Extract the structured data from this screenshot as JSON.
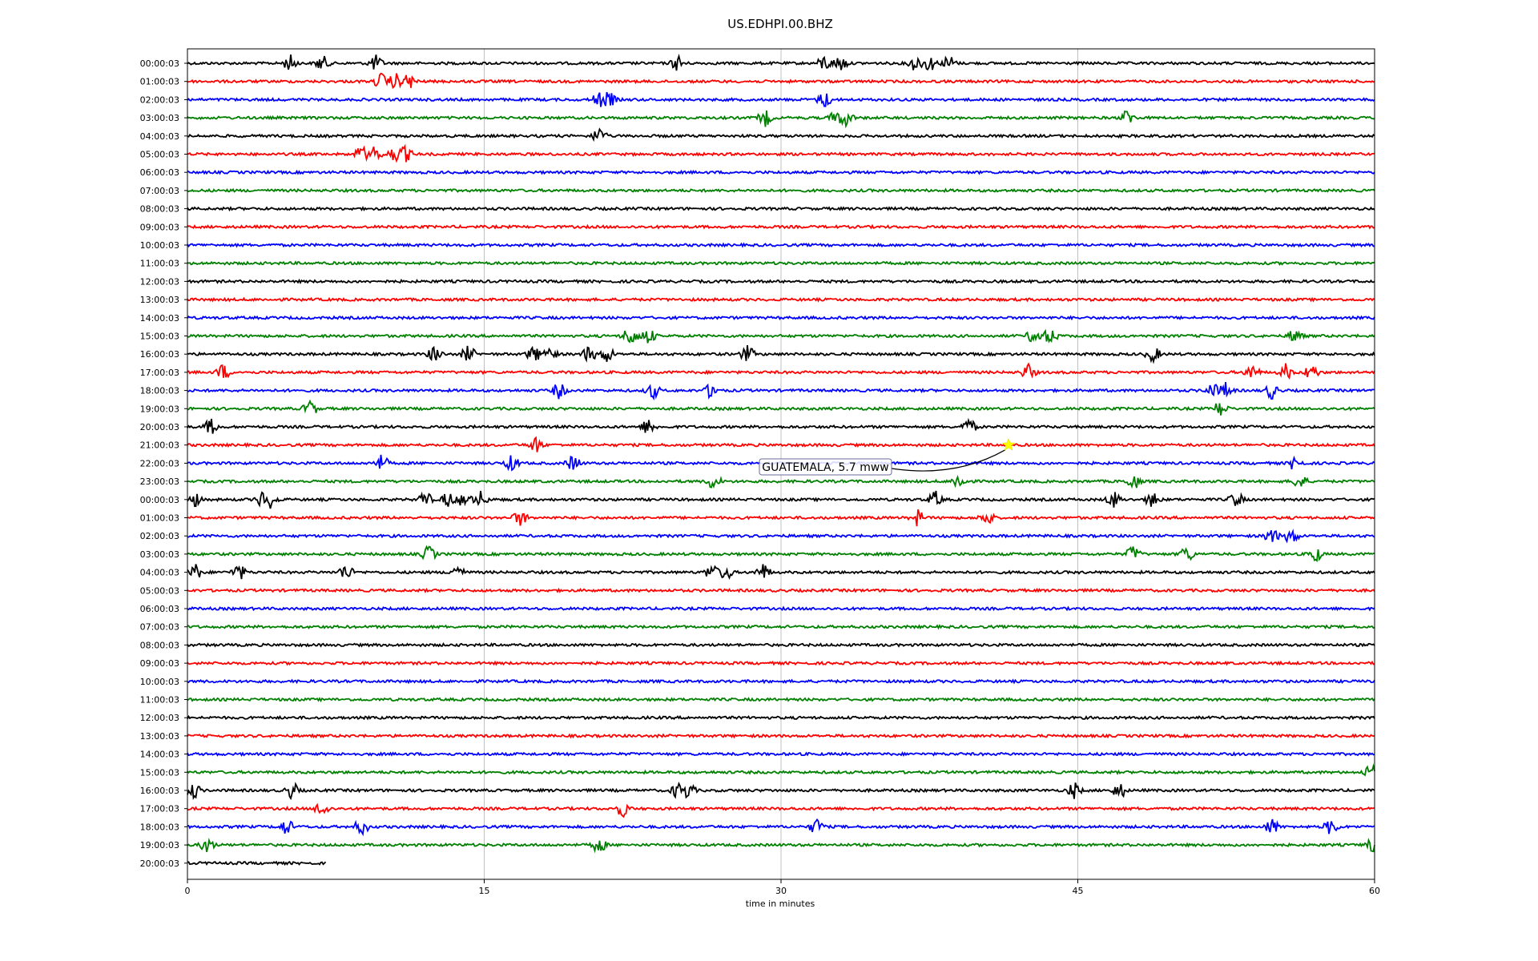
{
  "chart_data": {
    "type": "line",
    "title": "US.EDHPI.00.BHZ",
    "xlabel": "time in minutes",
    "xlim": [
      0,
      60
    ],
    "xticks": [
      0,
      15,
      30,
      45,
      60
    ],
    "grid": "vertical",
    "row_labels": [
      "00:00:03",
      "01:00:03",
      "02:00:03",
      "03:00:03",
      "04:00:03",
      "05:00:03",
      "06:00:03",
      "07:00:03",
      "08:00:03",
      "09:00:03",
      "10:00:03",
      "11:00:03",
      "12:00:03",
      "13:00:03",
      "14:00:03",
      "15:00:03",
      "16:00:03",
      "17:00:03",
      "18:00:03",
      "19:00:03",
      "20:00:03",
      "21:00:03",
      "22:00:03",
      "23:00:03",
      "00:00:03",
      "01:00:03",
      "02:00:03",
      "03:00:03",
      "04:00:03",
      "05:00:03",
      "06:00:03",
      "07:00:03",
      "08:00:03",
      "09:00:03",
      "10:00:03",
      "11:00:03",
      "12:00:03",
      "13:00:03",
      "14:00:03",
      "15:00:03",
      "16:00:03",
      "17:00:03",
      "18:00:03",
      "19:00:03",
      "20:00:03"
    ],
    "trace_colors": [
      "#000000",
      "#ff0000",
      "#0000ff",
      "#008000"
    ],
    "last_row_end_minute": 7,
    "events": [
      {
        "row": 0,
        "minutes": [
          5.2,
          6.8,
          9.5,
          24.8,
          32.2,
          33,
          36.8,
          37.5,
          38.5
        ]
      },
      {
        "row": 1,
        "minutes": [
          9.8,
          10.5,
          11.2
        ]
      },
      {
        "row": 2,
        "minutes": [
          20.8,
          21.3,
          32.2
        ]
      },
      {
        "row": 3,
        "minutes": [
          29.2,
          32.8,
          33.3,
          47.5
        ]
      },
      {
        "row": 4,
        "minutes": [
          20.8
        ]
      },
      {
        "row": 5,
        "minutes": [
          8.8,
          9.5,
          10.5,
          11
        ]
      },
      {
        "row": 15,
        "minutes": [
          22.3,
          22.5,
          23.3,
          42.8,
          43.6,
          56
        ]
      },
      {
        "row": 16,
        "minutes": [
          12.5,
          14.2,
          17.5,
          18.3,
          20.3,
          21.2,
          28.3,
          48.8
        ]
      },
      {
        "row": 17,
        "minutes": [
          1.8,
          42.5,
          53.8,
          55.5,
          56.8
        ]
      },
      {
        "row": 18,
        "minutes": [
          18.8,
          23.5,
          26.5,
          51.8,
          52.5,
          54.8
        ]
      },
      {
        "row": 19,
        "minutes": [
          6.2,
          52.2
        ]
      },
      {
        "row": 20,
        "minutes": [
          1.2,
          23.3,
          39.5
        ]
      },
      {
        "row": 21,
        "minutes": [
          17.6
        ]
      },
      {
        "row": 22,
        "minutes": [
          9.8,
          16.4,
          19.5,
          56
        ]
      },
      {
        "row": 23,
        "minutes": [
          26.6,
          39,
          47.8,
          56.2
        ]
      },
      {
        "row": 24,
        "minutes": [
          0.3,
          3.8,
          4.2,
          12,
          13.2,
          14,
          14.8,
          37.8,
          46.8,
          48.8,
          53
        ]
      },
      {
        "row": 25,
        "minutes": [
          16.8,
          36.9,
          40.4
        ]
      },
      {
        "row": 26,
        "minutes": [
          54.8,
          55.8
        ]
      },
      {
        "row": 27,
        "minutes": [
          12.2,
          47.8,
          50.5,
          57
        ]
      },
      {
        "row": 28,
        "minutes": [
          0.4,
          2.6,
          8,
          13.6,
          26.5,
          27.2,
          29.1
        ]
      },
      {
        "row": 39,
        "minutes": [
          59.8
        ]
      },
      {
        "row": 40,
        "minutes": [
          0.3,
          5.3,
          24.8,
          25.3,
          44.8,
          47.1
        ]
      },
      {
        "row": 41,
        "minutes": [
          6.8,
          22
        ]
      },
      {
        "row": 42,
        "minutes": [
          5,
          8.8,
          31.8,
          54.8,
          57.8
        ]
      },
      {
        "row": 43,
        "minutes": [
          1,
          20.8,
          59.9
        ]
      }
    ],
    "annotation": {
      "text": "GUATEMALA, 5.7 mww",
      "row": 21,
      "minute": 41.5
    }
  }
}
